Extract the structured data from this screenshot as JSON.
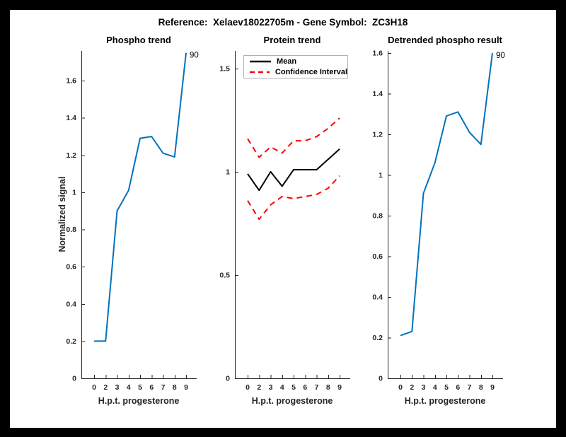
{
  "figure_title": "Reference:  Xelaev18022705m - Gene Symbol:  ZC3H18",
  "colors": {
    "frame": "#000000",
    "figure_bg": "#ffffff",
    "axis": "#262626",
    "line_blue": "#0072bd",
    "mean_black": "#000000",
    "ci_red": "#ff0000",
    "legend_border": "#b0b0b0"
  },
  "chart_data": [
    {
      "id": "phospho-trend",
      "type": "line",
      "title": "Phospho trend",
      "xlabel": "H.p.t. progesterone",
      "ylabel": "Normalized signal",
      "categories": [
        "0",
        "2",
        "3",
        "4",
        "5",
        "6",
        "7",
        "8",
        "9"
      ],
      "values": [
        0.2,
        0.2,
        0.9,
        1.01,
        1.29,
        1.3,
        1.21,
        1.19,
        1.75
      ],
      "line_color": "#0072bd",
      "ylim": [
        0,
        1.76
      ],
      "yticks": [
        0,
        0.2,
        0.4,
        0.6,
        0.8,
        1,
        1.2,
        1.4,
        1.6
      ],
      "ytick_labels": [
        "0",
        "0.2",
        "0.4",
        "0.6",
        "0.8",
        "1",
        "1.2",
        "1.4",
        "1.6"
      ],
      "endpoint_label": "90",
      "grid": false,
      "legend": null
    },
    {
      "id": "protein-trend",
      "type": "line",
      "title": "Protein trend",
      "xlabel": "H.p.t. progesterone",
      "ylabel": "",
      "categories": [
        "0",
        "2",
        "3",
        "4",
        "5",
        "6",
        "7",
        "8",
        "9"
      ],
      "series": [
        {
          "name": "Mean",
          "values": [
            0.99,
            0.91,
            1.0,
            0.93,
            1.01,
            1.01,
            1.01,
            1.06,
            1.11
          ],
          "color": "#000000",
          "style": "solid"
        },
        {
          "name": "Confidence Interval upper",
          "values": [
            1.16,
            1.07,
            1.12,
            1.09,
            1.15,
            1.15,
            1.17,
            1.21,
            1.26
          ],
          "color": "#ff0000",
          "style": "dashed"
        },
        {
          "name": "Confidence Interval lower",
          "values": [
            0.86,
            0.77,
            0.84,
            0.88,
            0.87,
            0.88,
            0.89,
            0.92,
            0.98
          ],
          "color": "#ff0000",
          "style": "dashed"
        }
      ],
      "legend": {
        "position": "top-left",
        "entries": [
          "Mean",
          "Confidence Interval"
        ]
      },
      "ylim": [
        0,
        1.585
      ],
      "yticks": [
        0,
        0.5,
        1,
        1.5
      ],
      "ytick_labels": [
        "0",
        "0.5",
        "1",
        "1.5"
      ],
      "endpoint_label": null,
      "grid": false
    },
    {
      "id": "detrended-phospho-result",
      "type": "line",
      "title": "Detrended phospho result",
      "xlabel": "H.p.t. progesterone",
      "ylabel": "",
      "categories": [
        "0",
        "2",
        "3",
        "4",
        "5",
        "6",
        "7",
        "8",
        "9"
      ],
      "values": [
        0.21,
        0.23,
        0.91,
        1.06,
        1.29,
        1.31,
        1.21,
        1.15,
        1.6
      ],
      "line_color": "#0072bd",
      "ylim": [
        0,
        1.61
      ],
      "yticks": [
        0,
        0.2,
        0.4,
        0.6,
        0.8,
        1,
        1.2,
        1.4,
        1.6
      ],
      "ytick_labels": [
        "0",
        "0.2",
        "0.4",
        "0.6",
        "0.8",
        "1",
        "1.2",
        "1.4",
        "1.6"
      ],
      "endpoint_label": "90",
      "grid": false,
      "legend": null
    }
  ]
}
